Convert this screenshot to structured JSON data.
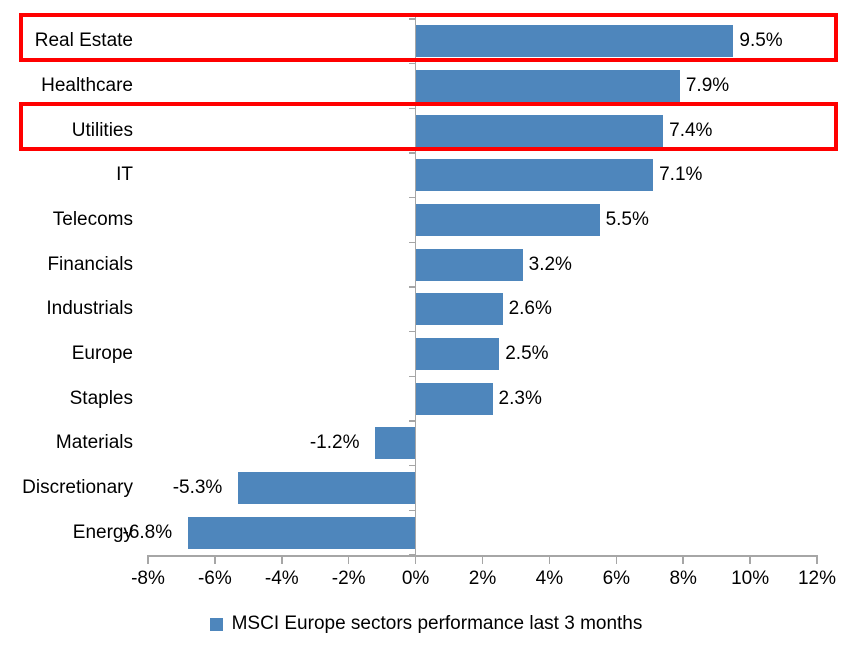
{
  "chart_data": {
    "type": "bar",
    "orientation": "horizontal",
    "title": "",
    "categories": [
      "Real Estate",
      "Healthcare",
      "Utilities",
      "IT",
      "Telecoms",
      "Financials",
      "Industrials",
      "Europe",
      "Staples",
      "Materials",
      "Discretionary",
      "Energy"
    ],
    "values": [
      9.5,
      7.9,
      7.4,
      7.1,
      5.5,
      3.2,
      2.6,
      2.5,
      2.3,
      -1.2,
      -5.3,
      -6.8
    ],
    "value_labels": [
      "9.5%",
      "7.9%",
      "7.4%",
      "7.1%",
      "5.5%",
      "3.2%",
      "2.6%",
      "2.5%",
      "2.3%",
      "-1.2%",
      "-5.3%",
      "-6.8%"
    ],
    "x_tick_labels": [
      "-8%",
      "-6%",
      "-4%",
      "-2%",
      "0%",
      "2%",
      "4%",
      "6%",
      "8%",
      "10%",
      "12%"
    ],
    "x_tick_values": [
      -8,
      -6,
      -4,
      -2,
      0,
      2,
      4,
      6,
      8,
      10,
      12
    ],
    "xlim": [
      -8,
      12
    ],
    "grid": false,
    "legend": "MSCI Europe sectors performance last 3 months",
    "legend_position": "bottom-center",
    "highlighted_categories": [
      "Real Estate",
      "Utilities"
    ],
    "colors": {
      "bar": "#4E86BC",
      "highlight_border": "#FF0000",
      "axis": "#A6A6A6",
      "text": "#000000",
      "background": "#FFFFFF"
    }
  }
}
